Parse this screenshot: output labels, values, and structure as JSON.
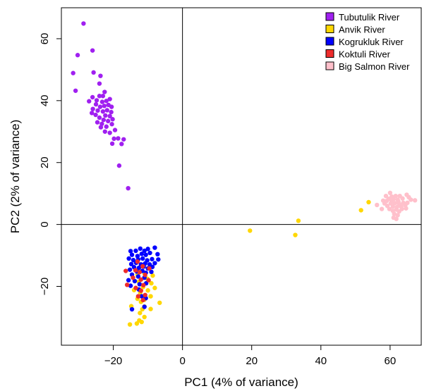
{
  "chart_data": {
    "type": "scatter",
    "xlabel": "PC1 (4% of variance)",
    "ylabel": "PC2 (2% of variance)",
    "xlim": [
      -35,
      69
    ],
    "ylim": [
      -39,
      70
    ],
    "xticks": [
      -20,
      0,
      20,
      40,
      60
    ],
    "yticks": [
      -20,
      0,
      20,
      40,
      60
    ],
    "xtick_labels": [
      "−20",
      "0",
      "20",
      "40",
      "60"
    ],
    "ytick_labels": [
      "−20",
      "0",
      "20",
      "40",
      "60"
    ],
    "reference_lines": {
      "x": 0,
      "y": 0
    },
    "legend_position": "top-right",
    "grid": false,
    "series": [
      {
        "name": "Tubutulik River",
        "color": "#A020F0",
        "points": [
          [
            -28.6,
            64.9
          ],
          [
            -26.0,
            56.2
          ],
          [
            -30.3,
            54.7
          ],
          [
            -25.7,
            49.1
          ],
          [
            -31.6,
            48.9
          ],
          [
            -30.9,
            43.2
          ],
          [
            -23.7,
            48.0
          ],
          [
            -24.0,
            45.5
          ],
          [
            -22.5,
            42.8
          ],
          [
            -23.0,
            41.5
          ],
          [
            -24.0,
            41.5
          ],
          [
            -26.0,
            41.1
          ],
          [
            -24.8,
            40.1
          ],
          [
            -23.2,
            39.6
          ],
          [
            -22.0,
            39.9
          ],
          [
            -21.0,
            40.5
          ],
          [
            -27.0,
            39.8
          ],
          [
            -25.0,
            38.8
          ],
          [
            -23.8,
            38.0
          ],
          [
            -22.6,
            38.3
          ],
          [
            -21.4,
            38.6
          ],
          [
            -20.5,
            38.0
          ],
          [
            -25.9,
            37.3
          ],
          [
            -24.5,
            36.8
          ],
          [
            -23.0,
            36.5
          ],
          [
            -21.8,
            36.9
          ],
          [
            -20.6,
            36.3
          ],
          [
            -26.2,
            36.0
          ],
          [
            -25.1,
            35.4
          ],
          [
            -22.3,
            35.2
          ],
          [
            -21.0,
            35.0
          ],
          [
            -24.0,
            34.5
          ],
          [
            -20.2,
            34.0
          ],
          [
            -22.8,
            33.8
          ],
          [
            -21.5,
            33.4
          ],
          [
            -24.6,
            33.0
          ],
          [
            -23.3,
            32.5
          ],
          [
            -20.4,
            32.4
          ],
          [
            -22.0,
            31.6
          ],
          [
            -23.6,
            31.4
          ],
          [
            -19.5,
            30.5
          ],
          [
            -22.4,
            30.0
          ],
          [
            -21.0,
            29.6
          ],
          [
            -17.0,
            27.5
          ],
          [
            -19.8,
            27.7
          ],
          [
            -18.6,
            27.8
          ],
          [
            -20.3,
            26.1
          ],
          [
            -17.6,
            26.0
          ],
          [
            -18.3,
            19.0
          ],
          [
            -15.7,
            11.7
          ]
        ]
      },
      {
        "name": "Anvik River",
        "color": "#FFD700",
        "points": [
          [
            53.8,
            7.2
          ],
          [
            51.6,
            4.6
          ],
          [
            33.5,
            1.2
          ],
          [
            19.5,
            -2.0
          ],
          [
            32.6,
            -3.4
          ],
          [
            -12.0,
            -13.5
          ],
          [
            -9.5,
            -13.0
          ],
          [
            -11.0,
            -15.8
          ],
          [
            -13.0,
            -16.2
          ],
          [
            -8.6,
            -16.5
          ],
          [
            -10.2,
            -17.5
          ],
          [
            -12.6,
            -18.5
          ],
          [
            -9.0,
            -19.0
          ],
          [
            -11.4,
            -20.2
          ],
          [
            -8.0,
            -20.5
          ],
          [
            -10.0,
            -21.3
          ],
          [
            -12.2,
            -22.0
          ],
          [
            -14.0,
            -21.2
          ],
          [
            -9.2,
            -23.2
          ],
          [
            -11.0,
            -24.3
          ],
          [
            -13.0,
            -24.0
          ],
          [
            -12.0,
            -25.0
          ],
          [
            -6.6,
            -25.3
          ],
          [
            -11.0,
            -26.5
          ],
          [
            -14.8,
            -26.4
          ],
          [
            -11.6,
            -27.4
          ],
          [
            -9.2,
            -27.3
          ],
          [
            -12.3,
            -28.6
          ],
          [
            -11.0,
            -29.9
          ],
          [
            -12.5,
            -31.0
          ],
          [
            -11.8,
            -31.5
          ],
          [
            -15.2,
            -32.3
          ],
          [
            -13.2,
            -32.0
          ]
        ]
      },
      {
        "name": "Kogrukluk River",
        "color": "#0000FF",
        "points": [
          [
            -15.0,
            -8.6
          ],
          [
            -13.5,
            -8.5
          ],
          [
            -12.2,
            -7.8
          ],
          [
            -11.0,
            -8.5
          ],
          [
            -10.0,
            -7.9
          ],
          [
            -8.0,
            -7.5
          ],
          [
            -14.6,
            -9.8
          ],
          [
            -13.0,
            -10.2
          ],
          [
            -11.8,
            -9.5
          ],
          [
            -10.6,
            -9.8
          ],
          [
            -9.4,
            -9.2
          ],
          [
            -7.2,
            -9.6
          ],
          [
            -15.5,
            -11.0
          ],
          [
            -14.2,
            -11.5
          ],
          [
            -12.8,
            -11.3
          ],
          [
            -11.5,
            -11.0
          ],
          [
            -10.2,
            -11.6
          ],
          [
            -8.8,
            -11.2
          ],
          [
            -7.0,
            -11.3
          ],
          [
            -14.8,
            -12.8
          ],
          [
            -13.4,
            -12.4
          ],
          [
            -12.0,
            -12.9
          ],
          [
            -10.8,
            -12.6
          ],
          [
            -9.5,
            -12.9
          ],
          [
            -8.0,
            -12.5
          ],
          [
            -14.0,
            -13.8
          ],
          [
            -12.6,
            -14.0
          ],
          [
            -11.2,
            -13.6
          ],
          [
            -10.0,
            -14.2
          ],
          [
            -8.7,
            -13.7
          ],
          [
            -15.2,
            -14.6
          ],
          [
            -13.2,
            -15.2
          ],
          [
            -11.6,
            -15.0
          ],
          [
            -10.6,
            -15.6
          ],
          [
            -9.0,
            -15.3
          ],
          [
            -14.6,
            -16.2
          ],
          [
            -12.8,
            -16.8
          ],
          [
            -11.0,
            -17.2
          ],
          [
            -15.6,
            -18.0
          ],
          [
            -13.8,
            -18.3
          ],
          [
            -12.4,
            -19.3
          ],
          [
            -10.5,
            -19.0
          ],
          [
            -15.0,
            -19.8
          ],
          [
            -12.6,
            -21.0
          ],
          [
            -11.8,
            -23.2
          ],
          [
            -10.6,
            -23.8
          ],
          [
            -11.0,
            -26.6
          ],
          [
            -14.6,
            -27.4
          ]
        ]
      },
      {
        "name": "Koktuli River",
        "color": "#EE2C2C",
        "points": [
          [
            -16.4,
            -15.0
          ],
          [
            -13.0,
            -12.0
          ],
          [
            -11.5,
            -13.5
          ],
          [
            -9.6,
            -14.2
          ],
          [
            -13.6,
            -14.8
          ],
          [
            -12.4,
            -15.4
          ],
          [
            -10.8,
            -16.3
          ],
          [
            -14.3,
            -17.2
          ],
          [
            -12.0,
            -17.8
          ],
          [
            -9.8,
            -18.0
          ],
          [
            -16.0,
            -19.5
          ],
          [
            -11.3,
            -19.6
          ],
          [
            -13.5,
            -20.5
          ],
          [
            -12.0,
            -21.4
          ],
          [
            -10.8,
            -22.8
          ],
          [
            -12.8,
            -23.2
          ],
          [
            -11.4,
            -24.4
          ]
        ]
      },
      {
        "name": "Big Salmon River",
        "color": "#FFC0CB",
        "points": [
          [
            57.6,
            5.0
          ],
          [
            56.2,
            6.3
          ],
          [
            58.0,
            7.7
          ],
          [
            58.8,
            9.2
          ],
          [
            59.6,
            8.3
          ],
          [
            60.0,
            10.2
          ],
          [
            60.5,
            9.0
          ],
          [
            61.0,
            8.2
          ],
          [
            61.6,
            9.2
          ],
          [
            62.2,
            8.0
          ],
          [
            62.8,
            9.2
          ],
          [
            63.6,
            8.4
          ],
          [
            64.8,
            9.6
          ],
          [
            65.4,
            8.8
          ],
          [
            66.0,
            8.0
          ],
          [
            67.2,
            7.8
          ],
          [
            58.4,
            6.8
          ],
          [
            59.2,
            6.0
          ],
          [
            60.2,
            6.8
          ],
          [
            60.8,
            5.8
          ],
          [
            61.4,
            6.9
          ],
          [
            62.0,
            5.6
          ],
          [
            62.6,
            6.6
          ],
          [
            63.2,
            5.8
          ],
          [
            63.8,
            7.0
          ],
          [
            64.4,
            6.2
          ],
          [
            65.0,
            7.0
          ],
          [
            59.8,
            5.0
          ],
          [
            60.8,
            4.4
          ],
          [
            61.8,
            4.8
          ],
          [
            62.6,
            4.2
          ],
          [
            63.4,
            5.0
          ],
          [
            64.6,
            5.2
          ],
          [
            61.2,
            3.4
          ],
          [
            62.2,
            3.0
          ],
          [
            61.0,
            2.2
          ],
          [
            61.8,
            1.8
          ],
          [
            59.0,
            7.6
          ],
          [
            60.4,
            7.6
          ],
          [
            62.4,
            7.4
          ]
        ]
      }
    ]
  }
}
